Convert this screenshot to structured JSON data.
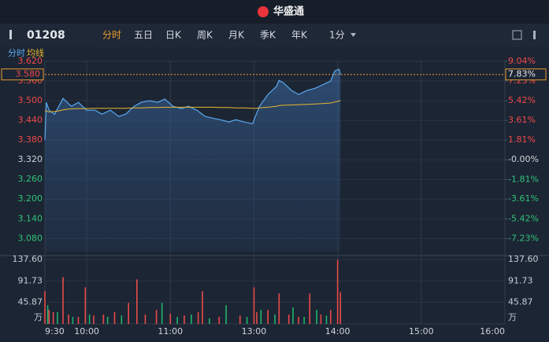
{
  "brand": "华盛通",
  "toolbar": {
    "code": "01208",
    "tabs": [
      "分时",
      "五日",
      "日K",
      "周K",
      "月K",
      "季K",
      "年K",
      "1分"
    ]
  },
  "chart_data": {
    "type": "line",
    "xlim": [
      0,
      330
    ],
    "xticks": [
      {
        "value": 0,
        "label": "9:30"
      },
      {
        "value": 30,
        "label": "10:00"
      },
      {
        "value": 90,
        "label": "11:00"
      },
      {
        "value": 150,
        "label": "13:00"
      },
      {
        "value": 210,
        "label": "14:00"
      },
      {
        "value": 270,
        "label": "15:00"
      },
      {
        "value": 330,
        "label": "16:00"
      }
    ],
    "ylim": [
      3.04,
      3.62
    ],
    "yticks": [
      {
        "value": 3.62,
        "label": "3.620"
      },
      {
        "value": 3.56,
        "label": "3.560"
      },
      {
        "value": 3.5,
        "label": "3.500"
      },
      {
        "value": 3.44,
        "label": "3.440"
      },
      {
        "value": 3.38,
        "label": "3.380"
      },
      {
        "value": 3.32,
        "label": "3.320"
      },
      {
        "value": 3.26,
        "label": "3.260"
      },
      {
        "value": 3.2,
        "label": "3.200"
      },
      {
        "value": 3.14,
        "label": "3.140"
      },
      {
        "value": 3.08,
        "label": "3.080"
      }
    ],
    "y2lim": [
      -8.43,
      9.04
    ],
    "y2ticks": [
      {
        "value": 9.04,
        "label": "9.04%"
      },
      {
        "value": 7.23,
        "label": "7.23%"
      },
      {
        "value": 5.42,
        "label": "5.42%"
      },
      {
        "value": 3.61,
        "label": "3.61%"
      },
      {
        "value": 1.81,
        "label": "1.81%"
      },
      {
        "value": 0,
        "label": "-0.00%"
      },
      {
        "value": -1.81,
        "label": "-1.81%"
      },
      {
        "value": -3.61,
        "label": "-3.61%"
      },
      {
        "value": -5.42,
        "label": "-5.42%"
      },
      {
        "value": -7.23,
        "label": "-7.23%"
      }
    ],
    "last_price": {
      "value": 3.58,
      "label": "3.580"
    },
    "last_change": {
      "value": 7.83,
      "label": "7.83%"
    },
    "x": [
      0,
      1,
      3,
      7,
      10,
      13,
      16,
      19,
      24,
      30,
      36,
      41,
      47,
      53,
      58,
      64,
      69,
      75,
      81,
      86,
      92,
      98,
      103,
      109,
      115,
      120,
      126,
      132,
      137,
      143,
      149,
      151,
      154,
      160,
      166,
      168,
      171,
      177,
      182,
      188,
      194,
      199,
      205,
      208,
      211,
      212
    ],
    "series": [
      {
        "name": "分时",
        "color": "#5aa9f0",
        "values": [
          3.38,
          3.495,
          3.471,
          3.459,
          3.483,
          3.507,
          3.495,
          3.483,
          3.495,
          3.471,
          3.471,
          3.459,
          3.471,
          3.452,
          3.459,
          3.483,
          3.495,
          3.5,
          3.495,
          3.505,
          3.483,
          3.476,
          3.483,
          3.471,
          3.452,
          3.447,
          3.442,
          3.435,
          3.442,
          3.435,
          3.43,
          3.452,
          3.483,
          3.519,
          3.543,
          3.562,
          3.555,
          3.531,
          3.519,
          3.531,
          3.538,
          3.548,
          3.56,
          3.591,
          3.596,
          3.58
        ]
      },
      {
        "name": "均线",
        "color": "#e8b830",
        "values": [
          3.47,
          3.468,
          3.466,
          3.467,
          3.469,
          3.472,
          3.474,
          3.475,
          3.476,
          3.476,
          3.477,
          3.477,
          3.477,
          3.477,
          3.477,
          3.478,
          3.478,
          3.479,
          3.479,
          3.48,
          3.48,
          3.48,
          3.48,
          3.48,
          3.48,
          3.48,
          3.479,
          3.479,
          3.478,
          3.478,
          3.477,
          3.477,
          3.478,
          3.48,
          3.483,
          3.485,
          3.486,
          3.487,
          3.488,
          3.489,
          3.49,
          3.491,
          3.493,
          3.496,
          3.499,
          3.5
        ]
      }
    ],
    "volume": {
      "ylim": [
        0,
        137.6
      ],
      "yticks": [
        {
          "value": 137.6,
          "label": "137.60"
        },
        91.73,
        45.87
      ],
      "unit": "万",
      "series": [
        {
          "color": "#e84a4a",
          "x": [
            0,
            3,
            6,
            13,
            17,
            24,
            29,
            35,
            42,
            50,
            60,
            66,
            72,
            80,
            90,
            100,
            110,
            113,
            125,
            140,
            150,
            152,
            160,
            168,
            175,
            182,
            190,
            198,
            205,
            210,
            212
          ],
          "values": [
            70,
            30,
            25,
            100,
            20,
            15,
            78,
            18,
            20,
            25,
            45,
            95,
            20,
            30,
            22,
            18,
            25,
            70,
            15,
            18,
            78,
            25,
            30,
            65,
            20,
            15,
            65,
            20,
            30,
            137,
            68
          ]
        },
        {
          "color": "#1fb36b",
          "x": [
            2,
            9,
            20,
            32,
            45,
            55,
            84,
            95,
            105,
            118,
            130,
            145,
            155,
            165,
            178,
            186,
            195,
            202
          ],
          "values": [
            40,
            25,
            15,
            20,
            15,
            18,
            45,
            15,
            20,
            12,
            40,
            15,
            30,
            20,
            35,
            15,
            30,
            18
          ]
        }
      ]
    }
  }
}
